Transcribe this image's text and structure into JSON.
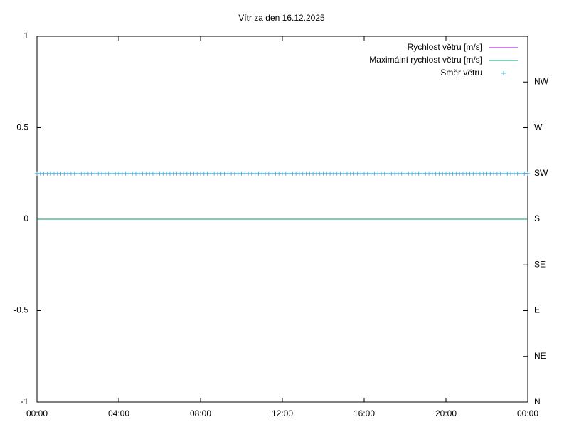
{
  "chart_data": {
    "type": "line",
    "title": "Vítr za den 16.12.2025",
    "x": [
      0,
      10,
      20,
      30,
      40,
      50,
      60,
      70,
      80,
      90,
      100,
      110,
      120,
      130,
      140,
      150,
      160,
      170,
      180,
      190,
      200,
      210,
      220,
      230,
      240,
      250,
      260,
      270,
      280,
      290,
      300,
      310,
      320,
      330,
      340,
      350,
      360,
      370,
      380,
      390,
      400,
      410,
      420,
      430,
      440,
      450,
      460,
      470,
      480,
      490,
      500,
      510,
      520,
      530,
      540,
      550,
      560,
      570,
      580,
      590,
      600,
      610,
      620,
      630,
      640,
      650,
      660,
      670,
      680,
      690,
      700,
      710,
      720,
      730,
      740,
      750,
      760,
      770,
      780,
      790,
      800,
      810,
      820,
      830,
      840,
      850,
      860,
      870,
      880,
      890,
      900,
      910,
      920,
      930,
      940,
      950,
      960,
      970,
      980,
      990,
      1000,
      1010,
      1020,
      1030,
      1040,
      1050,
      1060,
      1070,
      1080,
      1090,
      1100,
      1110,
      1120,
      1130,
      1140,
      1150,
      1160,
      1170,
      1180,
      1190,
      1200,
      1210,
      1220,
      1230,
      1240,
      1250,
      1260,
      1270,
      1280,
      1290,
      1300,
      1310,
      1320,
      1330,
      1340,
      1350,
      1360,
      1370,
      1380,
      1390,
      1400,
      1410,
      1420,
      1430,
      1440
    ],
    "xlim": [
      0,
      1440
    ],
    "xticks": [
      {
        "value": 0,
        "label": "00:00"
      },
      {
        "value": 240,
        "label": "04:00"
      },
      {
        "value": 480,
        "label": "08:00"
      },
      {
        "value": 720,
        "label": "12:00"
      },
      {
        "value": 960,
        "label": "16:00"
      },
      {
        "value": 1200,
        "label": "20:00"
      },
      {
        "value": 1440,
        "label": "00:00"
      }
    ],
    "ylim": [
      -1,
      1
    ],
    "yticks": [
      -1,
      -0.5,
      0,
      0.5,
      1
    ],
    "y2lim": [
      0,
      360
    ],
    "y2ticks": [
      {
        "value": 0,
        "label": "N"
      },
      {
        "value": 45,
        "label": "NE"
      },
      {
        "value": 90,
        "label": "E"
      },
      {
        "value": 135,
        "label": "SE"
      },
      {
        "value": 180,
        "label": "S"
      },
      {
        "value": 225,
        "label": "SW"
      },
      {
        "value": 270,
        "label": "W"
      },
      {
        "value": 315,
        "label": "NW"
      }
    ],
    "grid": false,
    "legend": "top-right",
    "series": [
      {
        "name": "Rychlost větru [m/s]",
        "color": "#9400d3",
        "style": "line",
        "values": [
          0,
          0,
          0,
          0,
          0,
          0,
          0,
          0,
          0,
          0,
          0,
          0,
          0,
          0,
          0,
          0,
          0,
          0,
          0,
          0,
          0,
          0,
          0,
          0,
          0,
          0,
          0,
          0,
          0,
          0,
          0,
          0,
          0,
          0,
          0,
          0,
          0,
          0,
          0,
          0,
          0,
          0,
          0,
          0,
          0,
          0,
          0,
          0,
          0,
          0,
          0,
          0,
          0,
          0,
          0,
          0,
          0,
          0,
          0,
          0,
          0,
          0,
          0,
          0,
          0,
          0,
          0,
          0,
          0,
          0,
          0,
          0,
          0,
          0,
          0,
          0,
          0,
          0,
          0,
          0,
          0,
          0,
          0,
          0,
          0,
          0,
          0,
          0,
          0,
          0,
          0,
          0,
          0,
          0,
          0,
          0,
          0,
          0,
          0,
          0,
          0,
          0,
          0,
          0,
          0,
          0,
          0,
          0,
          0,
          0,
          0,
          0,
          0,
          0,
          0,
          0,
          0,
          0,
          0,
          0,
          0,
          0,
          0,
          0,
          0,
          0,
          0,
          0,
          0,
          0,
          0,
          0,
          0,
          0,
          0,
          0,
          0,
          0,
          0,
          0,
          0,
          0,
          0,
          0,
          0
        ]
      },
      {
        "name": "Maximální rychlost větru [m/s]",
        "color": "#009e73",
        "style": "line",
        "values": [
          0,
          0,
          0,
          0,
          0,
          0,
          0,
          0,
          0,
          0,
          0,
          0,
          0,
          0,
          0,
          0,
          0,
          0,
          0,
          0,
          0,
          0,
          0,
          0,
          0,
          0,
          0,
          0,
          0,
          0,
          0,
          0,
          0,
          0,
          0,
          0,
          0,
          0,
          0,
          0,
          0,
          0,
          0,
          0,
          0,
          0,
          0,
          0,
          0,
          0,
          0,
          0,
          0,
          0,
          0,
          0,
          0,
          0,
          0,
          0,
          0,
          0,
          0,
          0,
          0,
          0,
          0,
          0,
          0,
          0,
          0,
          0,
          0,
          0,
          0,
          0,
          0,
          0,
          0,
          0,
          0,
          0,
          0,
          0,
          0,
          0,
          0,
          0,
          0,
          0,
          0,
          0,
          0,
          0,
          0,
          0,
          0,
          0,
          0,
          0,
          0,
          0,
          0,
          0,
          0,
          0,
          0,
          0,
          0,
          0,
          0,
          0,
          0,
          0,
          0,
          0,
          0,
          0,
          0,
          0,
          0,
          0,
          0,
          0,
          0,
          0,
          0,
          0,
          0,
          0,
          0,
          0,
          0,
          0,
          0,
          0,
          0,
          0,
          0,
          0,
          0,
          0,
          0,
          0,
          0
        ]
      },
      {
        "name": "Směr větru",
        "color": "#56b4e9",
        "style": "points",
        "axis": "y2",
        "values": [
          225,
          225,
          225,
          225,
          225,
          225,
          225,
          225,
          225,
          225,
          225,
          225,
          225,
          225,
          225,
          225,
          225,
          225,
          225,
          225,
          225,
          225,
          225,
          225,
          225,
          225,
          225,
          225,
          225,
          225,
          225,
          225,
          225,
          225,
          225,
          225,
          225,
          225,
          225,
          225,
          225,
          225,
          225,
          225,
          225,
          225,
          225,
          225,
          225,
          225,
          225,
          225,
          225,
          225,
          225,
          225,
          225,
          225,
          225,
          225,
          225,
          225,
          225,
          225,
          225,
          225,
          225,
          225,
          225,
          225,
          225,
          225,
          225,
          225,
          225,
          225,
          225,
          225,
          225,
          225,
          225,
          225,
          225,
          225,
          225,
          225,
          225,
          225,
          225,
          225,
          225,
          225,
          225,
          225,
          225,
          225,
          225,
          225,
          225,
          225,
          225,
          225,
          225,
          225,
          225,
          225,
          225,
          225,
          225,
          225,
          225,
          225,
          225,
          225,
          225,
          225,
          225,
          225,
          225,
          225,
          225,
          225,
          225,
          225,
          225,
          225,
          225,
          225,
          225,
          225,
          225,
          225,
          225,
          225,
          225,
          225,
          225,
          225,
          225,
          225,
          225,
          225,
          225,
          225,
          225
        ]
      }
    ]
  }
}
